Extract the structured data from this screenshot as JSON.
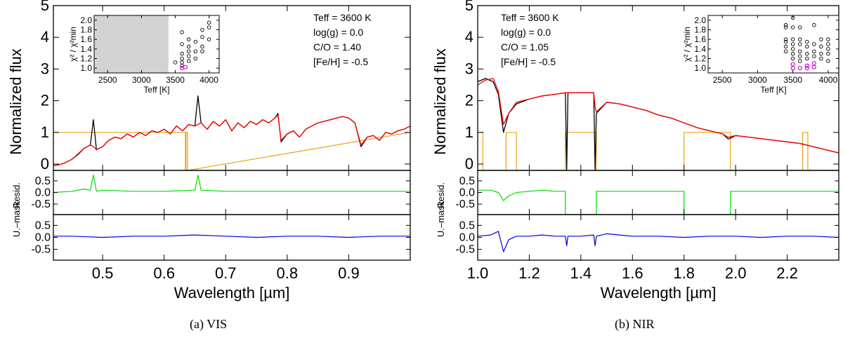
{
  "chart_data": [
    {
      "type": "line",
      "caption": "(a) VIS",
      "xlabel": "Wavelength [µm]",
      "ylabel_main": "Normalized flux",
      "ylabel_resid": "Resid.",
      "ylabel_resid_unmasked": "U.–mask",
      "xlim": [
        0.42,
        1.0
      ],
      "xticks": [
        "0.5",
        "0.6",
        "0.7",
        "0.8",
        "0.9"
      ],
      "xtick_values": [
        0.5,
        0.6,
        0.7,
        0.8,
        0.9
      ],
      "main_ylim": [
        -0.2,
        5.0
      ],
      "main_yticks": [
        "0",
        "1",
        "2",
        "3",
        "4",
        "5"
      ],
      "resid_ylim": [
        -0.95,
        0.95
      ],
      "resid_yticks": [
        "0.5",
        "0.0",
        "-0.5"
      ],
      "annotations": [
        "Teff = 3600 K",
        "log(g) = 0.0",
        "C/O = 1.40",
        "[Fe/H] = -0.5"
      ],
      "series": [
        {
          "role": "observed",
          "color": "#000000",
          "x": [
            0.42,
            0.43,
            0.44,
            0.45,
            0.46,
            0.47,
            0.48,
            0.485,
            0.49,
            0.5,
            0.51,
            0.52,
            0.53,
            0.54,
            0.55,
            0.56,
            0.57,
            0.58,
            0.59,
            0.6,
            0.61,
            0.62,
            0.63,
            0.64,
            0.65,
            0.655,
            0.66,
            0.67,
            0.68,
            0.69,
            0.7,
            0.71,
            0.72,
            0.73,
            0.74,
            0.75,
            0.76,
            0.77,
            0.78,
            0.785,
            0.79,
            0.8,
            0.81,
            0.82,
            0.83,
            0.84,
            0.85,
            0.86,
            0.87,
            0.88,
            0.89,
            0.9,
            0.91,
            0.92,
            0.93,
            0.94,
            0.95,
            0.96,
            0.97,
            0.98,
            0.99,
            1.0
          ],
          "y": [
            -0.05,
            -0.02,
            0.05,
            0.15,
            0.3,
            0.5,
            0.6,
            1.4,
            0.45,
            0.55,
            0.75,
            0.85,
            0.8,
            0.95,
            0.85,
            1.0,
            0.9,
            1.05,
            1.0,
            1.1,
            0.95,
            1.2,
            1.05,
            1.25,
            1.2,
            2.15,
            1.3,
            1.1,
            1.35,
            1.2,
            1.4,
            1.05,
            1.3,
            1.15,
            1.35,
            1.25,
            1.4,
            1.3,
            1.45,
            1.6,
            0.7,
            0.95,
            1.05,
            0.85,
            1.1,
            1.2,
            1.3,
            1.35,
            1.4,
            1.45,
            1.5,
            1.45,
            1.3,
            0.55,
            0.85,
            0.9,
            0.75,
            1.0,
            0.95,
            1.05,
            1.1,
            1.2
          ]
        },
        {
          "role": "model",
          "color": "#ff0000",
          "x": [
            0.42,
            0.43,
            0.44,
            0.45,
            0.46,
            0.47,
            0.48,
            0.485,
            0.49,
            0.5,
            0.51,
            0.52,
            0.53,
            0.54,
            0.55,
            0.56,
            0.57,
            0.58,
            0.59,
            0.6,
            0.61,
            0.62,
            0.63,
            0.64,
            0.65,
            0.655,
            0.66,
            0.67,
            0.68,
            0.69,
            0.7,
            0.71,
            0.72,
            0.73,
            0.74,
            0.75,
            0.76,
            0.77,
            0.78,
            0.785,
            0.79,
            0.8,
            0.81,
            0.82,
            0.83,
            0.84,
            0.85,
            0.86,
            0.87,
            0.88,
            0.89,
            0.9,
            0.91,
            0.92,
            0.93,
            0.94,
            0.95,
            0.96,
            0.97,
            0.98,
            0.99,
            1.0
          ],
          "y": [
            -0.05,
            -0.02,
            0.05,
            0.15,
            0.32,
            0.5,
            0.6,
            0.55,
            0.45,
            0.55,
            0.75,
            0.85,
            0.8,
            0.95,
            0.85,
            1.0,
            0.9,
            1.05,
            1.0,
            1.1,
            0.95,
            1.2,
            1.05,
            1.25,
            1.2,
            1.25,
            1.3,
            1.1,
            1.35,
            1.2,
            1.4,
            1.05,
            1.3,
            1.15,
            1.35,
            1.25,
            1.4,
            1.3,
            1.45,
            1.55,
            0.75,
            0.95,
            1.05,
            0.85,
            1.1,
            1.2,
            1.3,
            1.35,
            1.4,
            1.45,
            1.5,
            1.45,
            1.3,
            0.6,
            0.85,
            0.9,
            0.75,
            1.0,
            0.95,
            1.05,
            1.1,
            1.2
          ]
        },
        {
          "role": "mask",
          "color": "#e8a317",
          "x": [
            0.42,
            0.6345,
            0.6345,
            0.6355,
            0.6355,
            0.638,
            0.638,
            1.0
          ],
          "y": [
            1.0,
            1.0,
            -0.2,
            -0.2,
            1.0,
            1.0,
            -0.2,
            1.0
          ]
        },
        {
          "role": "residual",
          "color": "#00dd00",
          "x": [
            0.42,
            0.45,
            0.47,
            0.48,
            0.485,
            0.49,
            0.5,
            0.55,
            0.6,
            0.65,
            0.655,
            0.66,
            0.7,
            0.75,
            0.8,
            0.85,
            0.9,
            0.95,
            1.0
          ],
          "y": [
            0.0,
            0.05,
            0.15,
            0.1,
            0.75,
            0.05,
            0.1,
            0.05,
            0.05,
            0.1,
            0.75,
            0.1,
            0.05,
            0.05,
            0.05,
            0.05,
            0.05,
            0.05,
            0.05
          ]
        },
        {
          "role": "residual_unmasked",
          "color": "#0000ee",
          "x": [
            0.42,
            0.45,
            0.5,
            0.55,
            0.6,
            0.65,
            0.7,
            0.75,
            0.8,
            0.85,
            0.9,
            0.95,
            1.0
          ],
          "y": [
            0.05,
            0.05,
            0.0,
            0.05,
            0.05,
            0.1,
            0.05,
            0.0,
            0.05,
            0.05,
            0.0,
            0.05,
            0.05
          ]
        }
      ],
      "inset": {
        "xlabel": "Teff [K]",
        "ylabel": "χ² / χ²min",
        "xlim": [
          2300,
          4150
        ],
        "ylim": [
          0.9,
          2.1
        ],
        "xticks": [
          "2500",
          "3000",
          "3500",
          "4000"
        ],
        "xtick_values": [
          2500,
          3000,
          3500,
          4000
        ],
        "yticks": [
          "1.0",
          "1.2",
          "1.4",
          "1.6",
          "1.8",
          "2.0"
        ],
        "ytick_values": [
          1.0,
          1.2,
          1.4,
          1.6,
          1.8,
          2.0
        ],
        "shaded_range": [
          2300,
          3400
        ],
        "points": [
          [
            3500,
            1.12
          ],
          [
            3600,
            1.05
          ],
          [
            3600,
            1.12
          ],
          [
            3600,
            1.2
          ],
          [
            3600,
            1.3
          ],
          [
            3600,
            1.5
          ],
          [
            3600,
            1.75
          ],
          [
            3700,
            1.15
          ],
          [
            3700,
            1.25
          ],
          [
            3700,
            1.35
          ],
          [
            3700,
            1.45
          ],
          [
            3700,
            1.6
          ],
          [
            3800,
            1.2
          ],
          [
            3800,
            1.35
          ],
          [
            3800,
            1.55
          ],
          [
            3900,
            1.35
          ],
          [
            3900,
            1.45
          ],
          [
            3900,
            1.65
          ],
          [
            3900,
            1.8
          ],
          [
            4000,
            1.6
          ],
          [
            4000,
            1.85
          ],
          [
            4000,
            1.95
          ]
        ],
        "best_points": [
          [
            3600,
            1.0
          ],
          [
            3650,
            1.02
          ]
        ],
        "best_color": "#dd00dd"
      }
    },
    {
      "type": "line",
      "caption": "(b) NIR",
      "xlabel": "Wavelength [µm]",
      "ylabel_main": "Normalized flux",
      "ylabel_resid": "Resid.",
      "ylabel_resid_unmasked": "U.–mask",
      "xlim": [
        1.0,
        2.4
      ],
      "xticks": [
        "1.0",
        "1.2",
        "1.4",
        "1.6",
        "1.8",
        "2.0",
        "2.2"
      ],
      "xtick_values": [
        1.0,
        1.2,
        1.4,
        1.6,
        1.8,
        2.0,
        2.2
      ],
      "main_ylim": [
        -0.2,
        5.0
      ],
      "main_yticks": [
        "0",
        "1",
        "2",
        "3",
        "4",
        "5"
      ],
      "resid_ylim": [
        -0.95,
        0.95
      ],
      "resid_yticks": [
        "0.5",
        "0.0",
        "-0.5"
      ],
      "annotations": [
        "Teff = 3600 K",
        "log(g) = 0.0",
        "C/O = 1.05",
        "[Fe/H] = -0.5"
      ],
      "series": [
        {
          "role": "observed",
          "color": "#000000",
          "x": [
            1.0,
            1.03,
            1.06,
            1.08,
            1.1,
            1.12,
            1.15,
            1.2,
            1.25,
            1.3,
            1.34,
            1.345,
            1.35,
            1.45,
            1.455,
            1.46,
            1.5,
            1.55,
            1.6,
            1.65,
            1.7,
            1.75,
            1.8,
            1.85,
            1.9,
            1.95,
            1.97,
            1.975,
            2.0,
            2.05,
            2.1,
            2.15,
            2.2,
            2.25,
            2.3,
            2.35,
            2.4
          ],
          "y": [
            2.6,
            2.7,
            2.6,
            2.2,
            1.0,
            1.6,
            1.9,
            2.05,
            2.15,
            2.2,
            2.25,
            -0.2,
            2.25,
            2.25,
            -0.2,
            1.6,
            1.95,
            1.9,
            1.8,
            1.7,
            1.55,
            1.45,
            1.3,
            1.15,
            1.05,
            0.95,
            0.8,
            0.8,
            0.9,
            0.85,
            0.8,
            0.75,
            0.7,
            0.65,
            0.55,
            0.45,
            0.35
          ]
        },
        {
          "role": "model",
          "color": "#ff0000",
          "x": [
            1.0,
            1.03,
            1.06,
            1.08,
            1.1,
            1.12,
            1.15,
            1.2,
            1.25,
            1.3,
            1.34,
            1.345,
            1.35,
            1.45,
            1.455,
            1.46,
            1.5,
            1.55,
            1.6,
            1.65,
            1.7,
            1.75,
            1.8,
            1.85,
            1.9,
            1.95,
            1.97,
            1.975,
            2.0,
            2.05,
            2.1,
            2.15,
            2.2,
            2.25,
            2.3,
            2.35,
            2.4
          ],
          "y": [
            2.5,
            2.65,
            2.7,
            2.3,
            1.25,
            1.6,
            1.95,
            2.05,
            2.15,
            2.2,
            2.25,
            2.25,
            2.25,
            2.25,
            1.8,
            1.65,
            1.95,
            1.9,
            1.8,
            1.7,
            1.55,
            1.45,
            1.3,
            1.15,
            1.05,
            0.95,
            0.85,
            0.85,
            0.9,
            0.85,
            0.8,
            0.75,
            0.7,
            0.65,
            0.55,
            0.45,
            0.35
          ]
        },
        {
          "role": "mask",
          "color": "#e8a317",
          "x": [
            1.0,
            1.0,
            1.02,
            1.02,
            1.11,
            1.11,
            1.15,
            1.15,
            1.34,
            1.34,
            1.46,
            1.46,
            1.8,
            1.8,
            1.98,
            1.98,
            2.26,
            2.26,
            2.28,
            2.28,
            2.4
          ],
          "y": [
            -0.2,
            1.0,
            1.0,
            -0.2,
            -0.2,
            1.0,
            1.0,
            -0.2,
            -0.2,
            1.0,
            1.0,
            -0.2,
            -0.2,
            1.0,
            1.0,
            -0.2,
            -0.2,
            1.0,
            1.0,
            -0.2,
            -0.2
          ]
        },
        {
          "role": "residual",
          "color": "#00dd00",
          "x": [
            1.0,
            1.05,
            1.08,
            1.1,
            1.12,
            1.15,
            1.2,
            1.25,
            1.3,
            1.34,
            1.34,
            1.46,
            1.46,
            1.5,
            1.6,
            1.7,
            1.8,
            1.8,
            1.98,
            1.98,
            2.05,
            2.1,
            2.2,
            2.3,
            2.4
          ],
          "y": [
            0.1,
            0.1,
            0.0,
            -0.35,
            -0.15,
            0.0,
            0.05,
            0.1,
            0.05,
            0.05,
            -0.95,
            -0.95,
            0.05,
            0.05,
            0.05,
            0.05,
            0.05,
            -0.95,
            -0.95,
            0.05,
            0.05,
            0.05,
            0.05,
            0.05,
            0.05
          ]
        },
        {
          "role": "residual_unmasked",
          "color": "#0000ee",
          "x": [
            1.0,
            1.05,
            1.08,
            1.1,
            1.12,
            1.15,
            1.2,
            1.25,
            1.3,
            1.34,
            1.345,
            1.35,
            1.4,
            1.45,
            1.455,
            1.46,
            1.5,
            1.6,
            1.7,
            1.8,
            1.9,
            2.0,
            2.1,
            2.2,
            2.3,
            2.4
          ],
          "y": [
            0.05,
            0.1,
            0.25,
            -0.6,
            -0.1,
            0.05,
            0.05,
            0.1,
            0.05,
            0.05,
            -0.35,
            0.05,
            0.05,
            0.1,
            -0.35,
            0.05,
            0.15,
            0.05,
            0.05,
            0.0,
            0.05,
            0.05,
            0.0,
            0.05,
            0.05,
            0.0
          ]
        }
      ],
      "inset": {
        "xlabel": "Teff [K]",
        "ylabel": "χ² / χ²min",
        "xlim": [
          2300,
          4150
        ],
        "ylim": [
          0.9,
          2.1
        ],
        "xticks": [
          "2500",
          "3000",
          "3500",
          "4000"
        ],
        "xtick_values": [
          2500,
          3000,
          3500,
          4000
        ],
        "yticks": [
          "1.0",
          "1.2",
          "1.4",
          "1.6",
          "1.8",
          "2.0"
        ],
        "ytick_values": [
          1.0,
          1.2,
          1.4,
          1.6,
          1.8,
          2.0
        ],
        "shaded_range": null,
        "points": [
          [
            3400,
            1.35
          ],
          [
            3400,
            1.45
          ],
          [
            3400,
            1.55
          ],
          [
            3400,
            1.6
          ],
          [
            3400,
            1.85
          ],
          [
            3400,
            1.9
          ],
          [
            3500,
            1.2
          ],
          [
            3500,
            1.3
          ],
          [
            3500,
            1.4
          ],
          [
            3500,
            1.5
          ],
          [
            3500,
            1.6
          ],
          [
            3500,
            1.85
          ],
          [
            3500,
            2.05
          ],
          [
            3600,
            1.15
          ],
          [
            3600,
            1.25
          ],
          [
            3600,
            1.35
          ],
          [
            3600,
            1.5
          ],
          [
            3600,
            1.6
          ],
          [
            3600,
            1.85
          ],
          [
            3700,
            1.2
          ],
          [
            3700,
            1.3
          ],
          [
            3700,
            1.45
          ],
          [
            3700,
            1.55
          ],
          [
            3800,
            1.25
          ],
          [
            3800,
            1.35
          ],
          [
            3800,
            1.5
          ],
          [
            3800,
            1.9
          ],
          [
            3900,
            1.2
          ],
          [
            3900,
            1.3
          ],
          [
            3900,
            1.45
          ],
          [
            3900,
            1.6
          ],
          [
            4000,
            1.15
          ],
          [
            4000,
            1.3
          ],
          [
            4000,
            1.4
          ],
          [
            4000,
            1.5
          ],
          [
            4000,
            1.6
          ]
        ],
        "best_points": [
          [
            3500,
            1.0
          ],
          [
            3500,
            1.08
          ],
          [
            3600,
            1.0
          ],
          [
            3700,
            1.0
          ],
          [
            3700,
            1.05
          ],
          [
            3800,
            1.02
          ],
          [
            3800,
            1.1
          ]
        ],
        "best_color": "#dd00dd"
      }
    }
  ]
}
